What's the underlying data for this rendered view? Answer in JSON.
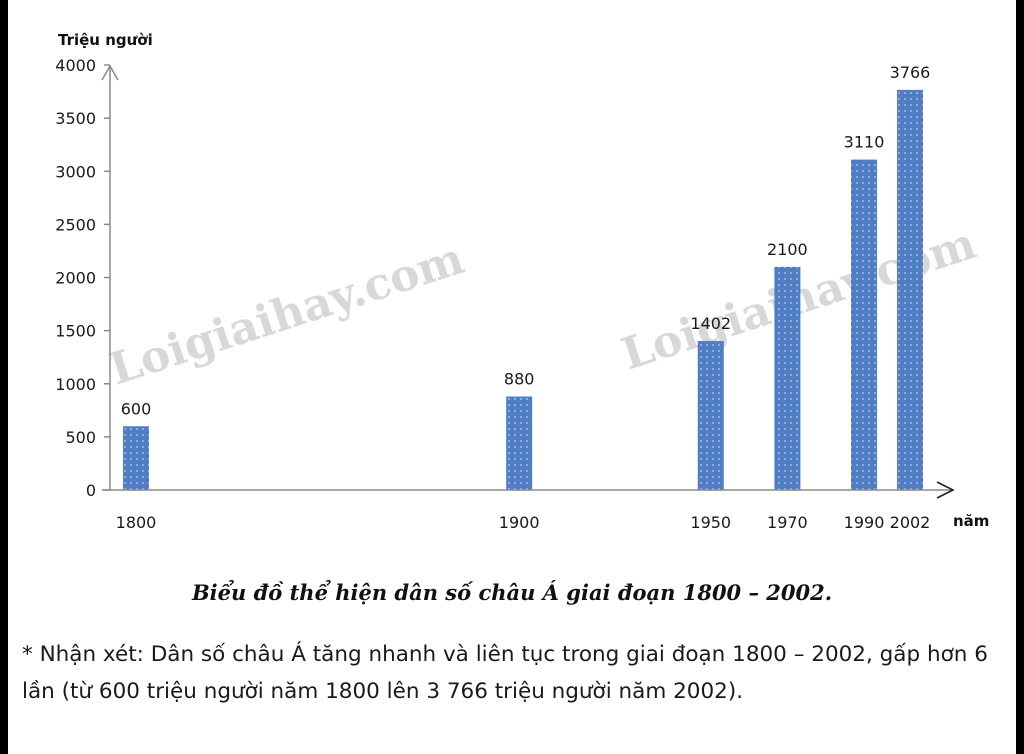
{
  "chart_data": {
    "type": "bar",
    "ylabel": "Triệu người",
    "xlabel": "năm",
    "categories": [
      "1800",
      "1900",
      "1950",
      "1970",
      "1990",
      "2002"
    ],
    "values": [
      600,
      880,
      1402,
      2100,
      3110,
      3766
    ],
    "ylim": [
      0,
      4000
    ],
    "yticks": [
      0,
      500,
      1000,
      1500,
      2000,
      2500,
      3000,
      3500,
      4000
    ],
    "x_scale": "proportional to year",
    "bar_color": "#4f7ec4",
    "grid": false
  },
  "watermarks": [
    "Loigiaihay.com",
    "Loigiaihay.com"
  ],
  "caption": "Biểu đồ thể hiện dân số châu Á giai đoạn 1800 – 2002.",
  "comment": "* Nhận xét: Dân số châu Á tăng nhanh và liên tục trong giai đoạn 1800 – 2002, gấp hơn 6 lần (từ 600 triệu người năm 1800 lên 3 766 triệu người năm 2002)."
}
